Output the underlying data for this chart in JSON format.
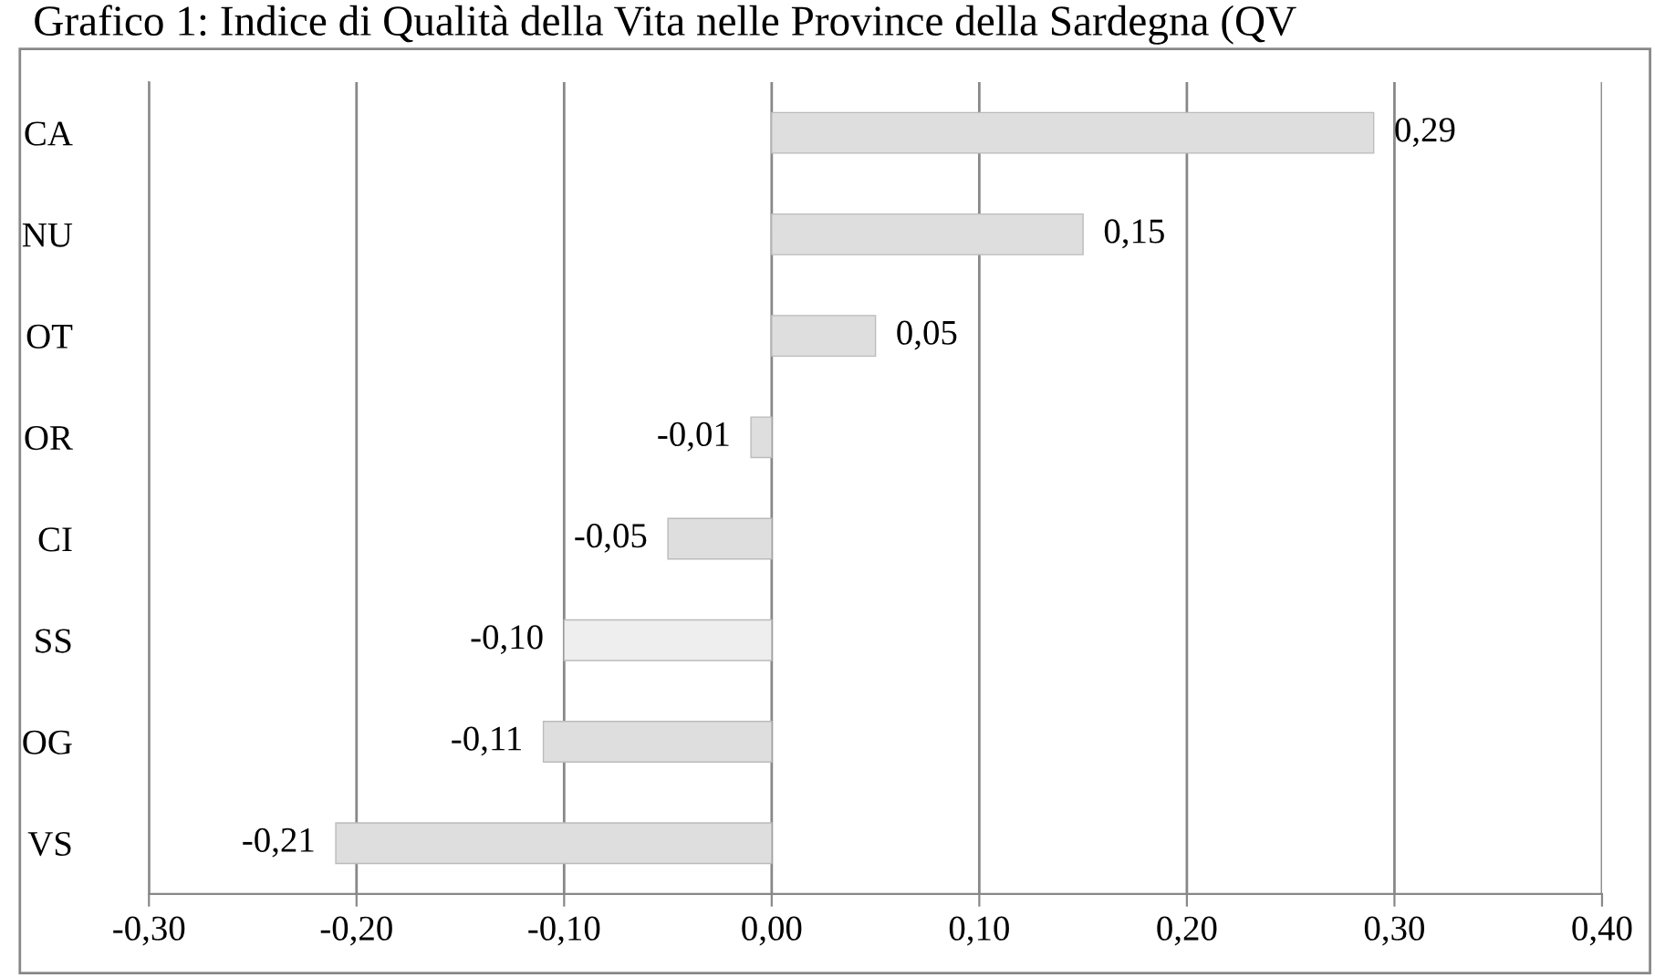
{
  "chart_data": {
    "type": "bar",
    "orientation": "horizontal",
    "title": "Grafico 1: Indice di Qualità della Vita nelle Province della Sardegna (QV",
    "categories": [
      "CA",
      "NU",
      "OT",
      "OR",
      "CI",
      "SS",
      "OG",
      "VS"
    ],
    "values": [
      0.29,
      0.15,
      0.05,
      -0.01,
      -0.05,
      -0.1,
      -0.11,
      -0.21
    ],
    "colors": [
      "#dedede",
      "#dedede",
      "#dedede",
      "#dedede",
      "#dedede",
      "#eeeeee",
      "#dedede",
      "#dedede"
    ],
    "value_labels": [
      "0,29",
      "0,15",
      "0,05",
      "-0,01",
      "-0,05",
      "-0,10",
      "-0,11",
      "-0,21"
    ],
    "xlim": [
      -0.3,
      0.4
    ],
    "xticks": [
      {
        "value": -0.3,
        "label": "-0,30"
      },
      {
        "value": -0.2,
        "label": "-0,20"
      },
      {
        "value": -0.1,
        "label": "-0,10"
      },
      {
        "value": 0,
        "label": "0,00"
      },
      {
        "value": 0.1,
        "label": "0,10"
      },
      {
        "value": 0.2,
        "label": "0,20"
      },
      {
        "value": 0.3,
        "label": "0,30"
      },
      {
        "value": 0.4,
        "label": "0,40"
      }
    ],
    "grid": "x"
  }
}
